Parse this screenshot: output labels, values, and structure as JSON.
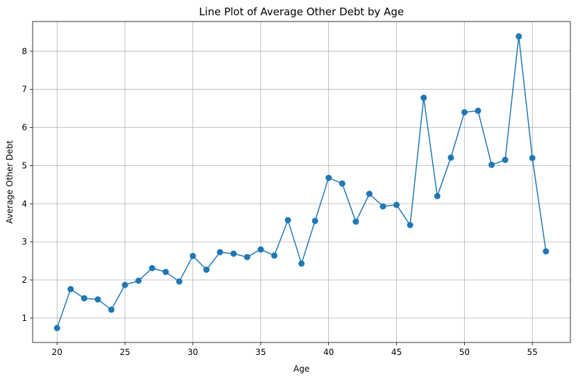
{
  "chart_data": {
    "type": "line",
    "title": "Line Plot of Average Other Debt by Age",
    "xlabel": "Age",
    "ylabel": "Average Other Debt",
    "xlim": [
      18.2,
      57.8
    ],
    "ylim": [
      0.36,
      8.78
    ],
    "xticks": [
      20,
      25,
      30,
      35,
      40,
      45,
      50,
      55
    ],
    "yticks": [
      1,
      2,
      3,
      4,
      5,
      6,
      7,
      8
    ],
    "grid": true,
    "series": [
      {
        "color": "#1f77b4",
        "marker": "circle",
        "x": [
          20,
          21,
          22,
          23,
          24,
          25,
          26,
          27,
          28,
          29,
          30,
          31,
          32,
          33,
          34,
          35,
          36,
          37,
          38,
          39,
          40,
          41,
          42,
          43,
          44,
          45,
          46,
          47,
          48,
          49,
          50,
          51,
          52,
          53,
          54,
          55,
          56
        ],
        "y": [
          0.74,
          1.76,
          1.52,
          1.49,
          1.22,
          1.87,
          1.98,
          2.31,
          2.21,
          1.96,
          2.63,
          2.27,
          2.73,
          2.69,
          2.6,
          2.8,
          2.64,
          3.57,
          2.43,
          3.55,
          4.68,
          4.53,
          3.53,
          4.26,
          3.93,
          3.97,
          3.44,
          6.78,
          4.2,
          5.21,
          6.4,
          6.44,
          5.02,
          5.15,
          8.39,
          5.2,
          2.75
        ]
      }
    ]
  }
}
